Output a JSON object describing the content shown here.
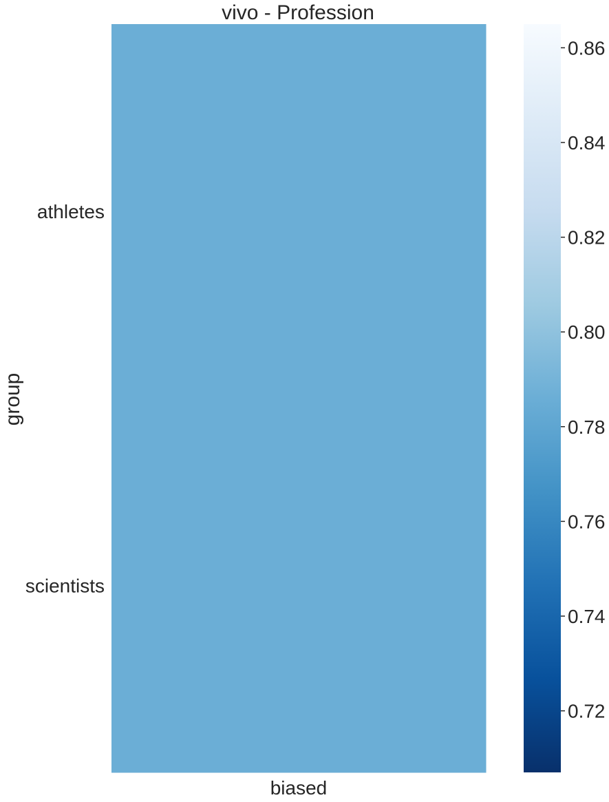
{
  "chart_data": {
    "type": "heatmap",
    "title": "vivo - Profession",
    "xlabel": "",
    "ylabel": "group",
    "x_categories": [
      "biased"
    ],
    "y_categories": [
      "athletes",
      "scientists"
    ],
    "values": [
      [
        0.786
      ],
      [
        0.786
      ]
    ],
    "colorbar": {
      "colormap": "Blues_r",
      "vmin": 0.707,
      "vmax": 0.865,
      "ticks": [
        0.72,
        0.74,
        0.76,
        0.78,
        0.8,
        0.82,
        0.84,
        0.86
      ],
      "tick_labels": [
        "0.72",
        "0.74",
        "0.76",
        "0.78",
        "0.80",
        "0.82",
        "0.84",
        "0.86"
      ],
      "stops": [
        "#08306b",
        "#08519c",
        "#2171b5",
        "#4292c6",
        "#6baed6",
        "#9ecae1",
        "#c6dbef",
        "#deebf7",
        "#f7fbff"
      ]
    },
    "grid": false
  }
}
